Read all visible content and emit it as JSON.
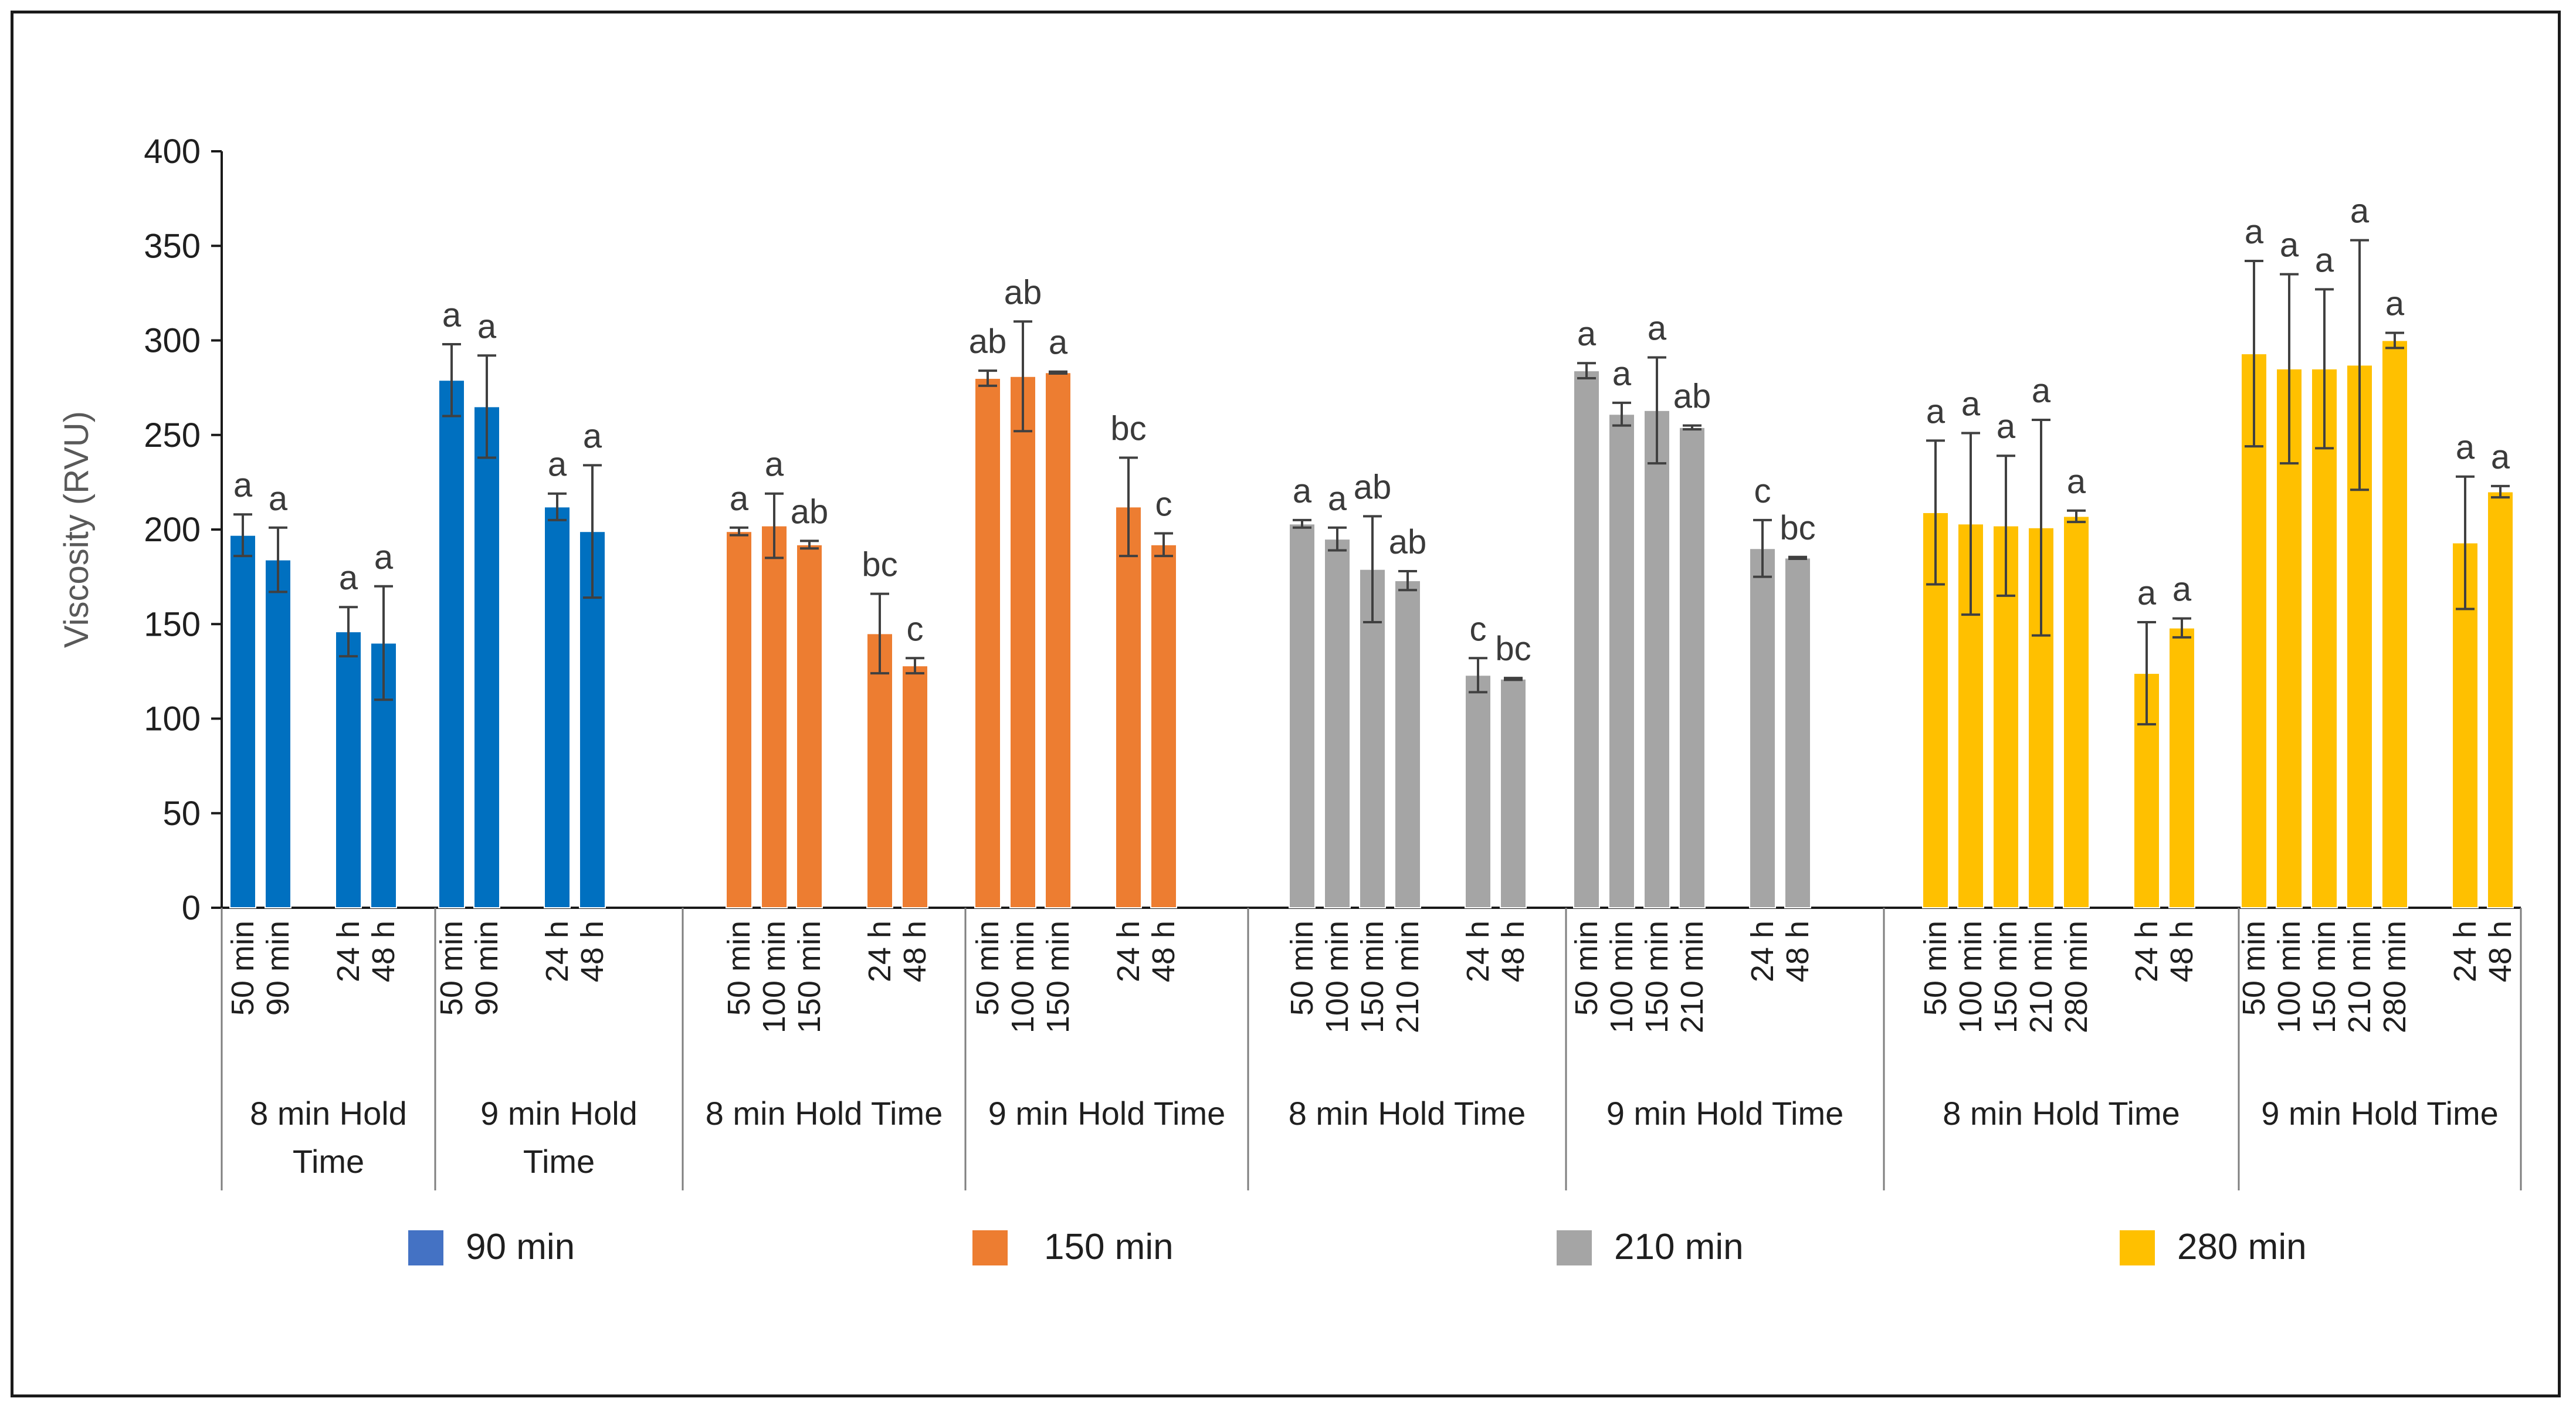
{
  "chart_data": {
    "type": "bar",
    "title": "",
    "xlabel": "",
    "ylabel": "Viscosity (RVU)",
    "ylim": [
      0,
      400
    ],
    "yticks": [
      0,
      50,
      100,
      150,
      200,
      250,
      300,
      350,
      400
    ],
    "grid": false,
    "legend": {
      "position": "bottom",
      "entries": [
        {
          "name": "90 min",
          "color": "#4472C4"
        },
        {
          "name": "150 min",
          "color": "#ED7D31"
        },
        {
          "name": "210 min",
          "color": "#A5A5A5"
        },
        {
          "name": "280 min",
          "color": "#FFC000"
        }
      ]
    },
    "series": [
      {
        "name": "90 min",
        "color": "#0070C0",
        "blocks": [
          {
            "group": "8 min Hold\nTime",
            "bars": [
              {
                "label": "50 min",
                "value": 197,
                "err": 11,
                "sig": "a"
              },
              {
                "label": "90 min",
                "value": 184,
                "err": 17,
                "sig": "a"
              },
              {
                "label": "24 h",
                "value": 146,
                "err": 13,
                "sig": "a"
              },
              {
                "label": "48 h",
                "value": 140,
                "err": 30,
                "sig": "a"
              }
            ],
            "layout": [
              0,
              1,
              3,
              4
            ]
          },
          {
            "group": "9 min Hold\nTime",
            "bars": [
              {
                "label": "50 min",
                "value": 279,
                "err": 19,
                "sig": "a"
              },
              {
                "label": "90 min",
                "value": 265,
                "err": 27,
                "sig": "a"
              },
              {
                "label": "24 h",
                "value": 212,
                "err": 7,
                "sig": "a"
              },
              {
                "label": "48 h",
                "value": 199,
                "err": 35,
                "sig": "a"
              }
            ],
            "layout": [
              0,
              1,
              3,
              4
            ]
          }
        ]
      },
      {
        "name": "150 min",
        "color": "#ED7D31",
        "blocks": [
          {
            "group": "8 min Hold Time",
            "bars": [
              {
                "label": "50 min",
                "value": 199,
                "err": 2,
                "sig": "a"
              },
              {
                "label": "100 min",
                "value": 202,
                "err": 17,
                "sig": "a"
              },
              {
                "label": "150 min",
                "value": 192,
                "err": 2,
                "sig": "ab"
              },
              {
                "label": "24 h",
                "value": 145,
                "err": 21,
                "sig": "bc"
              },
              {
                "label": "48 h",
                "value": 128,
                "err": 4,
                "sig": "c"
              }
            ],
            "layout": [
              0,
              1,
              2,
              4,
              5
            ]
          },
          {
            "group": "9 min Hold Time",
            "bars": [
              {
                "label": "50 min",
                "value": 280,
                "err": 4,
                "sig": "ab"
              },
              {
                "label": "100 min",
                "value": 281,
                "err": 29,
                "sig": "ab"
              },
              {
                "label": "150 min",
                "value": 283,
                "err": 0.5,
                "sig": "a"
              },
              {
                "label": "24 h",
                "value": 212,
                "err": 26,
                "sig": "bc"
              },
              {
                "label": "48 h",
                "value": 192,
                "err": 6,
                "sig": "c"
              }
            ],
            "layout": [
              0,
              1,
              2,
              4,
              5
            ]
          }
        ]
      },
      {
        "name": "210 min",
        "color": "#A5A5A5",
        "blocks": [
          {
            "group": "8 min Hold Time",
            "bars": [
              {
                "label": "50 min",
                "value": 203,
                "err": 2,
                "sig": "a"
              },
              {
                "label": "100 min",
                "value": 195,
                "err": 6,
                "sig": "a"
              },
              {
                "label": "150 min",
                "value": 179,
                "err": 28,
                "sig": "ab"
              },
              {
                "label": "210 min",
                "value": 173,
                "err": 5,
                "sig": "ab"
              },
              {
                "label": "24 h",
                "value": 123,
                "err": 9,
                "sig": "c"
              },
              {
                "label": "48 h",
                "value": 121,
                "err": 0.5,
                "sig": "bc"
              }
            ],
            "layout": [
              0,
              1,
              2,
              3,
              5,
              6
            ]
          },
          {
            "group": "9 min Hold Time",
            "bars": [
              {
                "label": "50 min",
                "value": 284,
                "err": 4,
                "sig": "a"
              },
              {
                "label": "100 min",
                "value": 261,
                "err": 6,
                "sig": "a"
              },
              {
                "label": "150 min",
                "value": 263,
                "err": 28,
                "sig": "a"
              },
              {
                "label": "210 min",
                "value": 254,
                "err": 1,
                "sig": "ab"
              },
              {
                "label": "24 h",
                "value": 190,
                "err": 15,
                "sig": "c"
              },
              {
                "label": "48 h",
                "value": 185,
                "err": 0.5,
                "sig": "bc"
              }
            ],
            "layout": [
              0,
              1,
              2,
              3,
              5,
              6
            ]
          }
        ]
      },
      {
        "name": "280 min",
        "color": "#FFC000",
        "blocks": [
          {
            "group": "8 min Hold Time",
            "bars": [
              {
                "label": "50 min",
                "value": 209,
                "err": 38,
                "sig": "a"
              },
              {
                "label": "100 min",
                "value": 203,
                "err": 48,
                "sig": "a"
              },
              {
                "label": "150 min",
                "value": 202,
                "err": 37,
                "sig": "a"
              },
              {
                "label": "210 min",
                "value": 201,
                "err": 57,
                "sig": "a"
              },
              {
                "label": "280 min",
                "value": 207,
                "err": 3,
                "sig": "a"
              },
              {
                "label": "24 h",
                "value": 124,
                "err": 27,
                "sig": "a"
              },
              {
                "label": "48 h",
                "value": 148,
                "err": 5,
                "sig": "a"
              }
            ],
            "layout": [
              0,
              1,
              2,
              3,
              4,
              6,
              7
            ]
          },
          {
            "group": "9 min Hold Time",
            "bars": [
              {
                "label": "50 min",
                "value": 293,
                "err": 49,
                "sig": "a"
              },
              {
                "label": "100 min",
                "value": 285,
                "err": 50,
                "sig": "a"
              },
              {
                "label": "150 min",
                "value": 285,
                "err": 42,
                "sig": "a"
              },
              {
                "label": "210 min",
                "value": 287,
                "err": 66,
                "sig": "a"
              },
              {
                "label": "280 min",
                "value": 300,
                "err": 4,
                "sig": "a"
              },
              {
                "label": "24 h",
                "value": 193,
                "err": 35,
                "sig": "a"
              },
              {
                "label": "48 h",
                "value": 220,
                "err": 3,
                "sig": "a"
              }
            ],
            "layout": [
              0,
              1,
              2,
              3,
              4,
              6,
              7
            ]
          }
        ]
      }
    ]
  }
}
